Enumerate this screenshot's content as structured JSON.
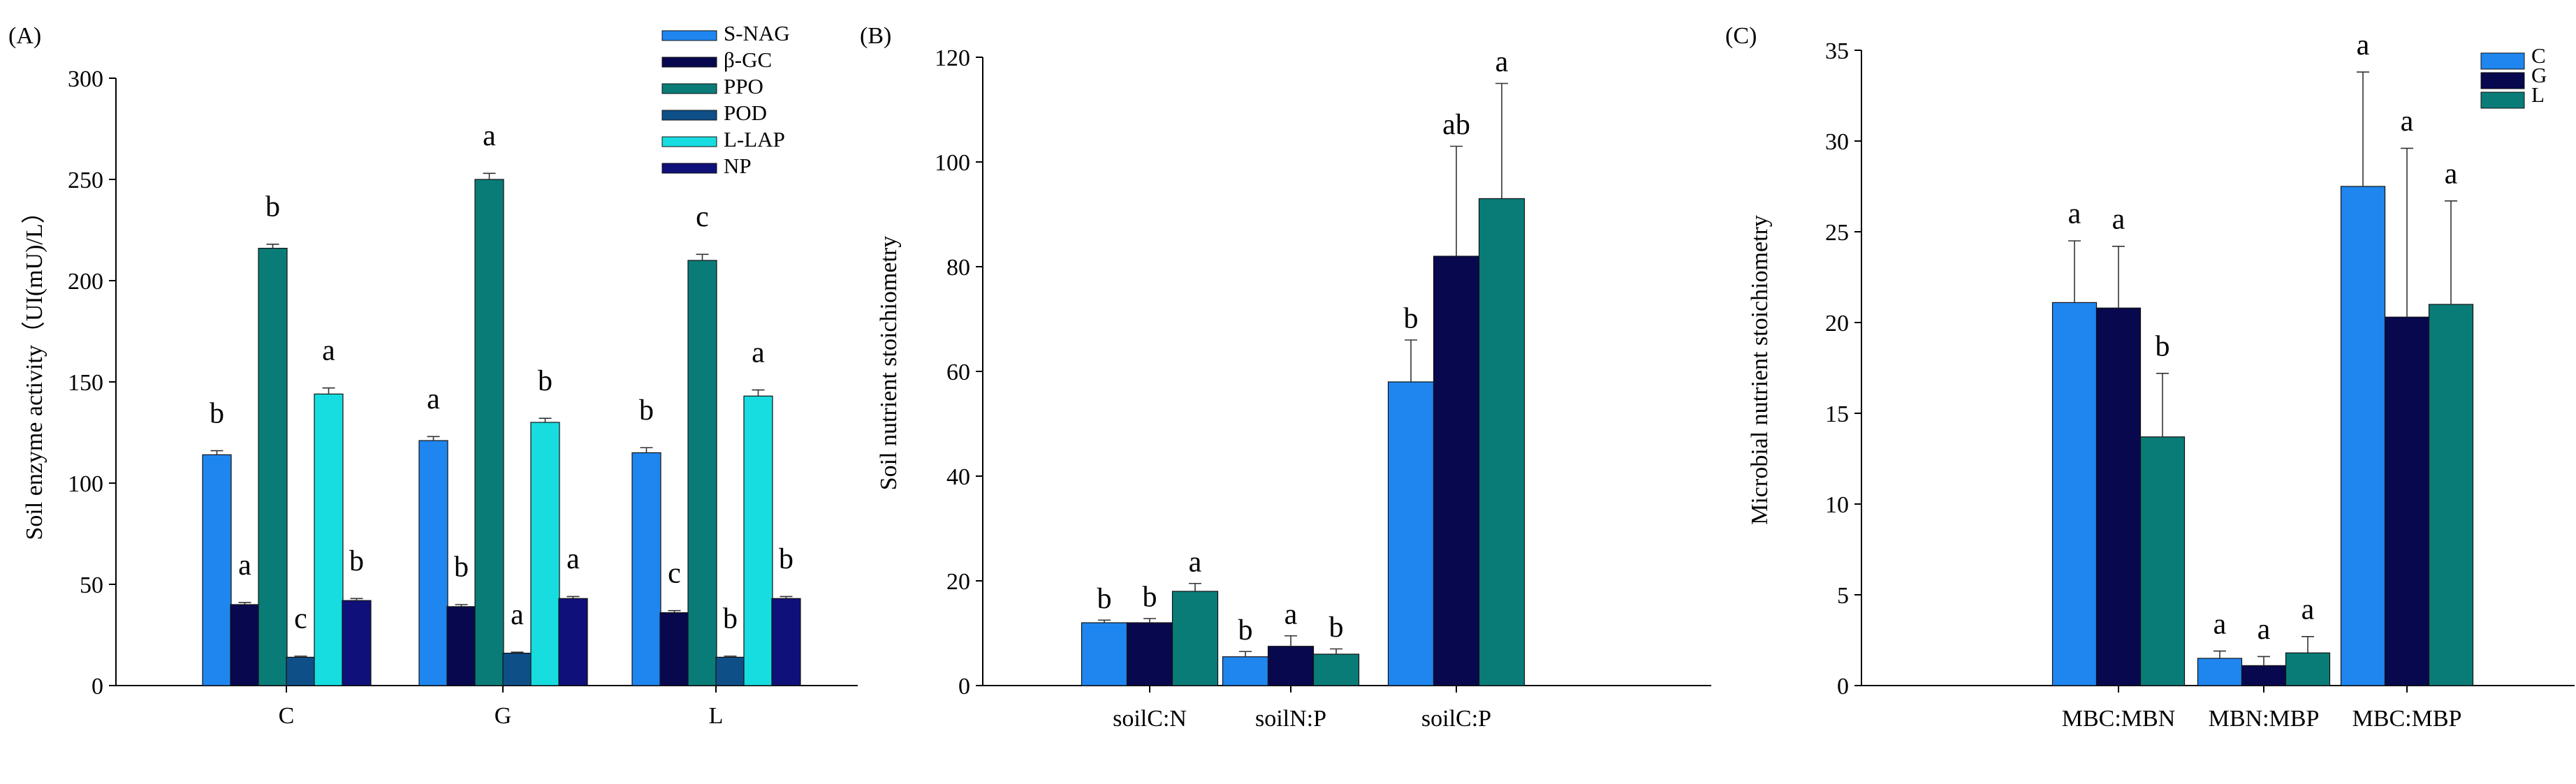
{
  "panels": [
    {
      "panel_label": "(A)",
      "ylabel": "Soil enzyme activity（UI(mU)/L）"
    },
    {
      "panel_label": "(B)",
      "ylabel": "Soil nutrient stoichiometry"
    },
    {
      "panel_label": "(C)",
      "ylabel": "Microbial  nutrient stoichiometry"
    }
  ],
  "chart_data": [
    {
      "type": "bar",
      "panel": "(A)",
      "title": "",
      "xlabel": "",
      "ylabel": "Soil enzyme activity（UI(mU)/L）",
      "ylim": [
        0,
        300
      ],
      "yticks": [
        0,
        50,
        100,
        150,
        200,
        250,
        300
      ],
      "categories": [
        "C",
        "G",
        "L"
      ],
      "legend_position": "top-right",
      "series": [
        {
          "name": "S-NAG",
          "color": "#1f86f0",
          "values": [
            114,
            121,
            115
          ],
          "errors": [
            2,
            2,
            2.5
          ],
          "letters": [
            "b",
            "a",
            "b"
          ]
        },
        {
          "name": "β-GC",
          "color": "#08084f",
          "values": [
            40,
            39,
            36
          ],
          "errors": [
            1,
            1,
            1
          ],
          "letters": [
            "a",
            "b",
            "c"
          ]
        },
        {
          "name": "PPO",
          "color": "#0a7c78",
          "values": [
            216,
            250,
            210
          ],
          "errors": [
            2,
            3,
            3
          ],
          "letters": [
            "b",
            "a",
            "c"
          ]
        },
        {
          "name": "POD",
          "color": "#0e4f88",
          "values": [
            14,
            16,
            14
          ],
          "errors": [
            0.5,
            0.5,
            0.5
          ],
          "letters": [
            "c",
            "a",
            "b"
          ]
        },
        {
          "name": "L-LAP",
          "color": "#17dde0",
          "values": [
            144,
            130,
            143
          ],
          "errors": [
            3,
            2,
            3
          ],
          "letters": [
            "a",
            "b",
            "a"
          ]
        },
        {
          "name": "NP",
          "color": "#10107a",
          "values": [
            42,
            43,
            43
          ],
          "errors": [
            1,
            1,
            1
          ],
          "letters": [
            "b",
            "a",
            "b"
          ]
        }
      ]
    },
    {
      "type": "bar",
      "panel": "(B)",
      "title": "",
      "xlabel": "",
      "ylabel": "Soil nutrient stoichiometry",
      "ylim": [
        0,
        120
      ],
      "yticks": [
        0,
        20,
        40,
        60,
        80,
        100,
        120
      ],
      "categories": [
        "soilC:N",
        "soilN:P",
        "soilC:P"
      ],
      "series": [
        {
          "name": "C",
          "color": "#1f86f0",
          "values": [
            12,
            5.5,
            58
          ],
          "errors": [
            0.5,
            1,
            8
          ],
          "letters": [
            "b",
            "b",
            "b"
          ]
        },
        {
          "name": "G",
          "color": "#08084f",
          "values": [
            12,
            7.5,
            82
          ],
          "errors": [
            0.8,
            2,
            21
          ],
          "letters": [
            "b",
            "a",
            "ab"
          ]
        },
        {
          "name": "L",
          "color": "#0a7c78",
          "values": [
            18,
            6,
            93
          ],
          "errors": [
            1.5,
            1,
            22
          ],
          "letters": [
            "a",
            "b",
            "a"
          ]
        }
      ]
    },
    {
      "type": "bar",
      "panel": "(C)",
      "title": "",
      "xlabel": "",
      "ylabel": "Microbial  nutrient stoichiometry",
      "ylim": [
        0,
        35
      ],
      "yticks": [
        0,
        5,
        10,
        15,
        20,
        25,
        30,
        35
      ],
      "categories": [
        "MBC:MBN",
        "MBN:MBP",
        "MBC:MBP"
      ],
      "legend_position": "top-right",
      "series": [
        {
          "name": "C",
          "color": "#1f86f0",
          "values": [
            21.1,
            1.5,
            27.5
          ],
          "errors": [
            3.4,
            0.4,
            6.3
          ],
          "letters": [
            "a",
            "a",
            "a"
          ]
        },
        {
          "name": "G",
          "color": "#08084f",
          "values": [
            20.8,
            1.1,
            20.3
          ],
          "errors": [
            3.4,
            0.5,
            9.3
          ],
          "letters": [
            "a",
            "a",
            "a"
          ]
        },
        {
          "name": "L",
          "color": "#0a7c78",
          "values": [
            13.7,
            1.8,
            21
          ],
          "errors": [
            3.5,
            0.9,
            5.7
          ],
          "letters": [
            "b",
            "a",
            "a"
          ]
        }
      ]
    }
  ]
}
